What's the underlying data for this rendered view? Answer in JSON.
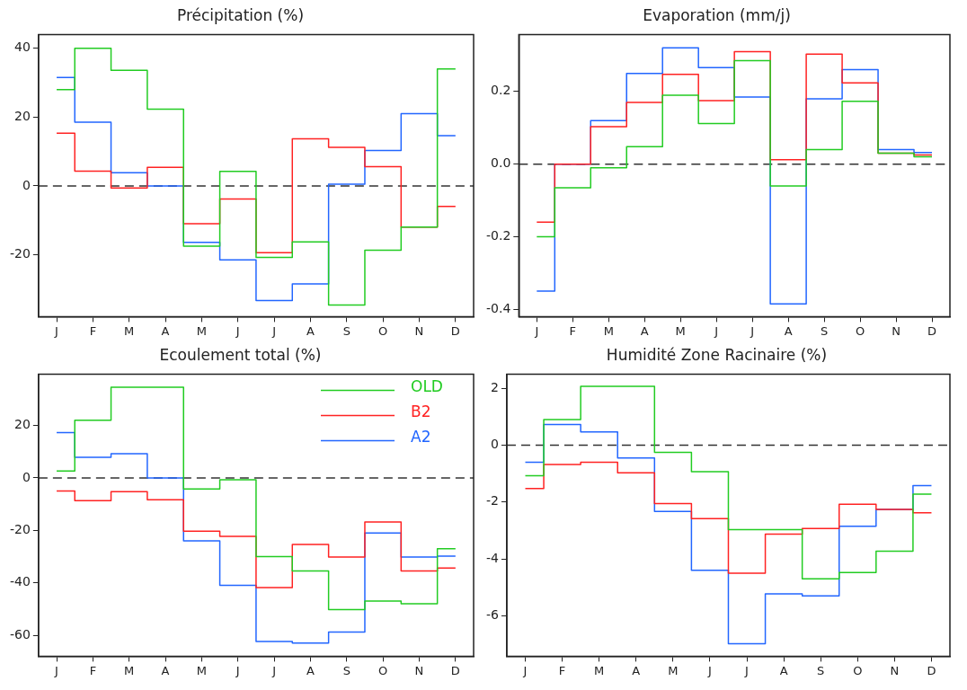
{
  "chart_data": [
    {
      "type": "step",
      "title": "Précipitation (%)",
      "categories": [
        "J",
        "F",
        "M",
        "A",
        "M",
        "J",
        "J",
        "A",
        "S",
        "O",
        "N",
        "D"
      ],
      "ylim": [
        -38,
        44
      ],
      "yticks": [
        -20,
        0,
        20,
        40
      ],
      "grid": false,
      "legend": false,
      "ref_lines": [
        {
          "axis": "y",
          "value": 0,
          "color": "#333333",
          "line_style": "dashed"
        }
      ],
      "series": [
        {
          "color": "#22cc22",
          "values": [
            28,
            40,
            33.6,
            22.3,
            -17.5,
            4.2,
            -20.8,
            -16.3,
            -34.6,
            -18.7,
            -12,
            34
          ]
        },
        {
          "color": "#ff2222",
          "values": [
            15.3,
            4.3,
            -0.6,
            5.4,
            -11,
            -3.8,
            -19.4,
            13.7,
            11.2,
            5.6,
            -12,
            -6
          ]
        },
        {
          "color": "#2266ff",
          "values": [
            31.5,
            18.5,
            3.8,
            0,
            -16.4,
            -21.5,
            -33.3,
            -28.5,
            0.5,
            10.3,
            21,
            14.6
          ]
        }
      ]
    },
    {
      "type": "step",
      "title": "Evaporation (mm/j)",
      "categories": [
        "J",
        "F",
        "M",
        "A",
        "M",
        "J",
        "J",
        "A",
        "S",
        "O",
        "N",
        "D"
      ],
      "ylim": [
        -0.42,
        0.357
      ],
      "yticks": [
        {
          "value": -0.4,
          "label": "-0.4"
        },
        {
          "value": -0.2,
          "label": "-0.2"
        },
        {
          "value": 0,
          "label": "0.0"
        },
        {
          "value": 0.2,
          "label": "0.2"
        }
      ],
      "grid": false,
      "legend": false,
      "ref_lines": [
        {
          "axis": "y",
          "value": 0,
          "color": "#333333",
          "line_style": "dashed"
        }
      ],
      "series": [
        {
          "color": "#22cc22",
          "values": [
            -0.2,
            -0.065,
            -0.01,
            0.048,
            0.19,
            0.112,
            0.285,
            -0.06,
            0.04,
            0.173,
            0.03,
            0.02
          ]
        },
        {
          "color": "#ff2222",
          "values": [
            -0.16,
            0,
            0.103,
            0.17,
            0.247,
            0.175,
            0.31,
            0.012,
            0.303,
            0.224,
            0.03,
            0.025
          ]
        },
        {
          "color": "#2266ff",
          "values": [
            -0.35,
            0,
            0.12,
            0.25,
            0.32,
            0.266,
            0.185,
            -0.385,
            0.18,
            0.26,
            0.04,
            0.032
          ]
        }
      ]
    },
    {
      "type": "step",
      "title": "Ecoulement total (%)",
      "categories": [
        "J",
        "F",
        "M",
        "A",
        "M",
        "J",
        "J",
        "A",
        "S",
        "O",
        "N",
        "D"
      ],
      "ylim": [
        -68,
        39.6
      ],
      "yticks": [
        -60,
        -40,
        -20,
        0,
        20
      ],
      "grid": false,
      "legend": "top right",
      "ref_lines": [
        {
          "axis": "y",
          "value": 0,
          "color": "#333333",
          "line_style": "dashed"
        }
      ],
      "series": [
        {
          "name": "OLD",
          "color": "#22cc22",
          "values": [
            2.6,
            22,
            34.6,
            34.6,
            -4.2,
            -0.7,
            -30,
            -35.5,
            -50.2,
            -47,
            -48,
            -27
          ]
        },
        {
          "name": "B2",
          "color": "#ff2222",
          "values": [
            -5,
            -8.7,
            -5.2,
            -8.3,
            -20.3,
            -22.3,
            -41.8,
            -25.4,
            -30.2,
            -16.8,
            -35.5,
            -34.4
          ]
        },
        {
          "name": "A2",
          "color": "#2266ff",
          "values": [
            17.3,
            7.9,
            9.2,
            0,
            -24,
            -41,
            -62.4,
            -63,
            -58.8,
            -21,
            -30.2,
            -29.8
          ]
        }
      ]
    },
    {
      "type": "step",
      "title": "Humidité Zone Racinaire (%)",
      "categories": [
        "J",
        "F",
        "M",
        "A",
        "M",
        "J",
        "J",
        "A",
        "S",
        "O",
        "N",
        "D"
      ],
      "ylim": [
        -7.42,
        2.5
      ],
      "yticks": [
        -6,
        -4,
        -2,
        0,
        2
      ],
      "grid": false,
      "legend": false,
      "ref_lines": [
        {
          "axis": "y",
          "value": 0,
          "color": "#333333",
          "line_style": "dashed"
        }
      ],
      "series": [
        {
          "color": "#22cc22",
          "values": [
            -1.07,
            0.9,
            2.07,
            2.07,
            -0.25,
            -0.93,
            -2.97,
            -2.97,
            -4.7,
            -4.48,
            -3.73,
            -1.72
          ]
        },
        {
          "color": "#ff2222",
          "values": [
            -1.52,
            -0.68,
            -0.6,
            -0.97,
            -2.05,
            -2.58,
            -4.5,
            -3.13,
            -2.93,
            -2.08,
            -2.26,
            -2.38
          ]
        },
        {
          "color": "#2266ff",
          "values": [
            -0.6,
            0.73,
            0.47,
            -0.45,
            -2.33,
            -4.4,
            -6.98,
            -5.23,
            -5.3,
            -2.85,
            -2.26,
            -1.42
          ]
        }
      ]
    }
  ]
}
